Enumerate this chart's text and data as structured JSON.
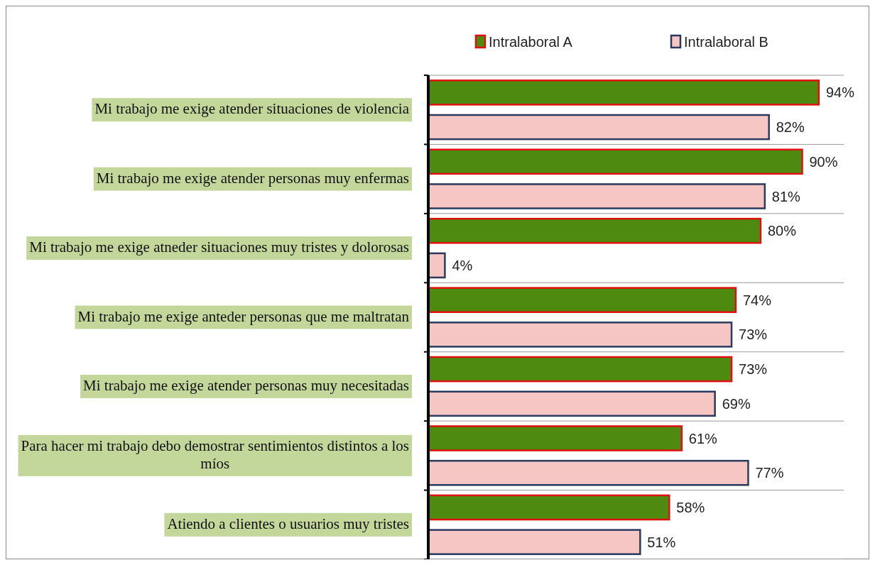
{
  "chart_data": {
    "type": "bar",
    "orientation": "horizontal",
    "categories": [
      "Mi trabajo me exige atender situaciones de violencia",
      "Mi trabajo me exige atender personas muy enfermas",
      "Mi trabajo me exige atneder situaciones muy tristes y dolorosas",
      "Mi trabajo me exige anteder personas que me maltratan",
      "Mi trabajo me exige atender personas muy necesitadas",
      "Para hacer mi trabajo debo demostrar sentimientos distintos a los míos",
      "Atiendo a clientes o usuarios muy tristes"
    ],
    "series": [
      {
        "name": "Intralaboral A",
        "color": "#4f8a10",
        "values": [
          94,
          90,
          80,
          74,
          73,
          61,
          58
        ],
        "value_labels": [
          "94%",
          "90%",
          "80%",
          "74%",
          "73%",
          "61%",
          "58%"
        ]
      },
      {
        "name": "Intralaboral B",
        "color": "#f6c6c4",
        "values": [
          82,
          81,
          4,
          73,
          69,
          77,
          51
        ],
        "value_labels": [
          "82%",
          "81%",
          "4%",
          "73%",
          "69%",
          "77%",
          "51%"
        ]
      }
    ],
    "xlim": [
      0,
      100
    ],
    "grid": "y",
    "legend": "top right"
  }
}
